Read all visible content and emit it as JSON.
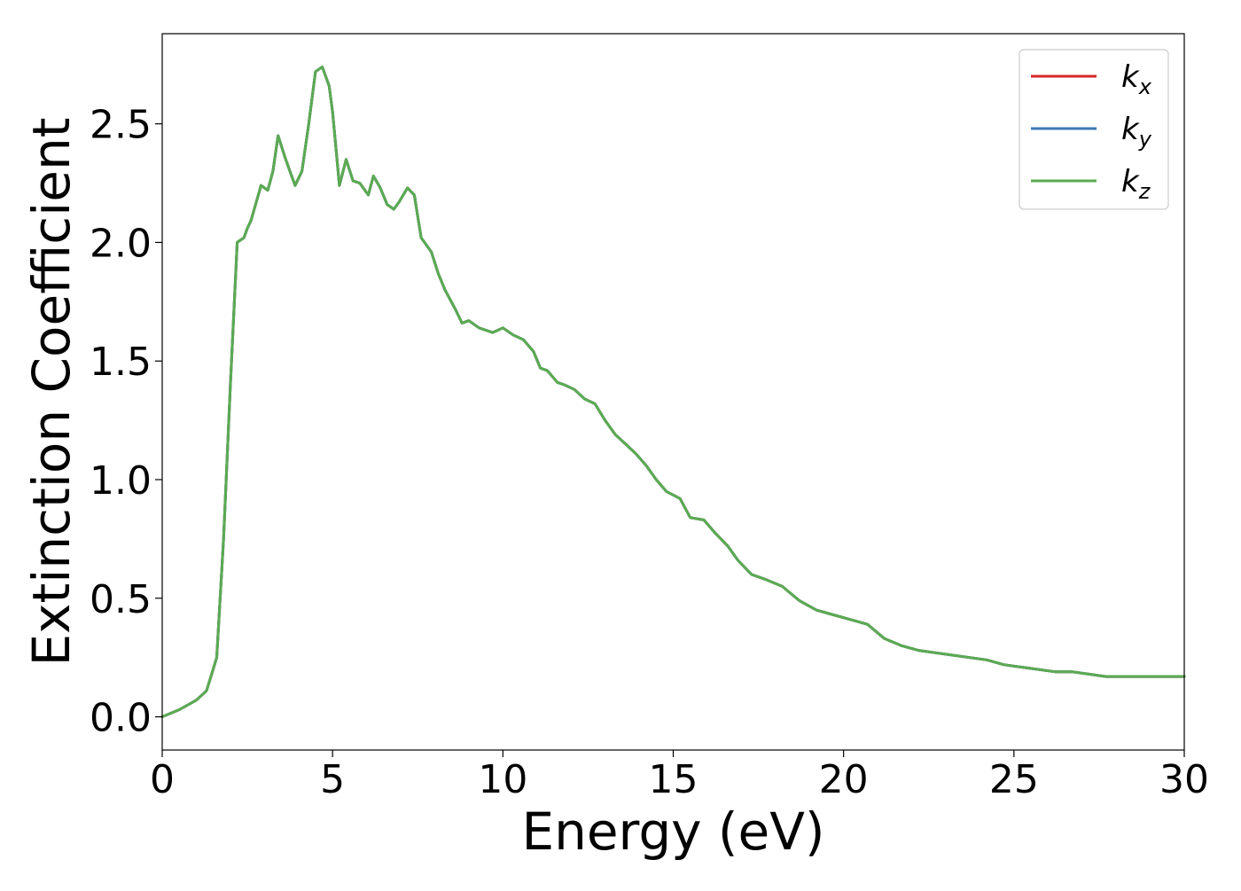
{
  "chart_data": {
    "type": "line",
    "xlabel": "Energy (eV)",
    "ylabel": "Extinction Coefficient",
    "xlim": [
      0,
      30
    ],
    "ylim": [
      -0.14,
      2.88
    ],
    "xticks": [
      0,
      5,
      10,
      15,
      20,
      25,
      30
    ],
    "xtick_labels": [
      "0",
      "5",
      "10",
      "15",
      "20",
      "25",
      "30"
    ],
    "yticks": [
      0.0,
      0.5,
      1.0,
      1.5,
      2.0,
      2.5
    ],
    "ytick_labels": [
      "0.0",
      "0.5",
      "1.0",
      "1.5",
      "2.0",
      "2.5"
    ],
    "grid": false,
    "legend_position": "top-right",
    "x": [
      0,
      0.5,
      1.0,
      1.3,
      1.6,
      1.8,
      2.0,
      2.2,
      2.4,
      2.5,
      2.6,
      2.7,
      2.9,
      3.1,
      3.25,
      3.4,
      3.6,
      3.75,
      3.9,
      4.1,
      4.3,
      4.5,
      4.7,
      4.9,
      5.0,
      5.2,
      5.4,
      5.6,
      5.8,
      6.05,
      6.2,
      6.4,
      6.6,
      6.8,
      6.95,
      7.2,
      7.4,
      7.6,
      7.9,
      8.1,
      8.3,
      8.6,
      8.8,
      9.0,
      9.3,
      9.7,
      10.0,
      10.3,
      10.6,
      10.9,
      11.1,
      11.3,
      11.6,
      11.8,
      12.1,
      12.4,
      12.7,
      13.0,
      13.3,
      13.6,
      13.9,
      14.2,
      14.5,
      14.8,
      15.2,
      15.5,
      15.9,
      16.2,
      16.6,
      16.9,
      17.3,
      17.7,
      18.2,
      18.7,
      19.2,
      19.7,
      20.2,
      20.7,
      21.2,
      21.7,
      22.2,
      22.7,
      23.2,
      23.7,
      24.2,
      24.7,
      25.2,
      25.7,
      26.2,
      26.7,
      27.2,
      27.7,
      28.2,
      28.7,
      29.2,
      29.6,
      30.0
    ],
    "series": [
      {
        "name": "k_x",
        "label_base": "k",
        "label_sub": "x",
        "color": "#d62728",
        "y": [
          0.0,
          0.03,
          0.07,
          0.11,
          0.25,
          0.75,
          1.4,
          2.0,
          2.02,
          2.06,
          2.09,
          2.14,
          2.24,
          2.22,
          2.3,
          2.45,
          2.36,
          2.3,
          2.24,
          2.3,
          2.5,
          2.72,
          2.74,
          2.66,
          2.55,
          2.24,
          2.35,
          2.26,
          2.25,
          2.2,
          2.28,
          2.23,
          2.16,
          2.14,
          2.17,
          2.23,
          2.2,
          2.02,
          1.96,
          1.87,
          1.8,
          1.72,
          1.66,
          1.67,
          1.64,
          1.62,
          1.64,
          1.61,
          1.59,
          1.54,
          1.47,
          1.46,
          1.41,
          1.4,
          1.38,
          1.34,
          1.32,
          1.25,
          1.19,
          1.15,
          1.11,
          1.06,
          1.0,
          0.95,
          0.92,
          0.84,
          0.83,
          0.78,
          0.72,
          0.66,
          0.6,
          0.58,
          0.55,
          0.49,
          0.45,
          0.43,
          0.41,
          0.39,
          0.33,
          0.3,
          0.28,
          0.27,
          0.26,
          0.25,
          0.24,
          0.22,
          0.21,
          0.2,
          0.19,
          0.19,
          0.18,
          0.17,
          0.17,
          0.17,
          0.17,
          0.17,
          0.17
        ]
      },
      {
        "name": "k_y",
        "label_base": "k",
        "label_sub": "y",
        "color": "#3d78b4",
        "y": [
          0.0,
          0.03,
          0.07,
          0.11,
          0.25,
          0.75,
          1.4,
          2.0,
          2.02,
          2.06,
          2.09,
          2.14,
          2.24,
          2.22,
          2.3,
          2.45,
          2.36,
          2.3,
          2.24,
          2.3,
          2.5,
          2.72,
          2.74,
          2.66,
          2.55,
          2.24,
          2.35,
          2.26,
          2.25,
          2.2,
          2.28,
          2.23,
          2.16,
          2.14,
          2.17,
          2.23,
          2.2,
          2.02,
          1.96,
          1.87,
          1.8,
          1.72,
          1.66,
          1.67,
          1.64,
          1.62,
          1.64,
          1.61,
          1.59,
          1.54,
          1.47,
          1.46,
          1.41,
          1.4,
          1.38,
          1.34,
          1.32,
          1.25,
          1.19,
          1.15,
          1.11,
          1.06,
          1.0,
          0.95,
          0.92,
          0.84,
          0.83,
          0.78,
          0.72,
          0.66,
          0.6,
          0.58,
          0.55,
          0.49,
          0.45,
          0.43,
          0.41,
          0.39,
          0.33,
          0.3,
          0.28,
          0.27,
          0.26,
          0.25,
          0.24,
          0.22,
          0.21,
          0.2,
          0.19,
          0.19,
          0.18,
          0.17,
          0.17,
          0.17,
          0.17,
          0.17,
          0.17
        ]
      },
      {
        "name": "k_z",
        "label_base": "k",
        "label_sub": "z",
        "color": "#5aab52",
        "y": [
          0.0,
          0.03,
          0.07,
          0.11,
          0.25,
          0.75,
          1.4,
          2.0,
          2.02,
          2.06,
          2.09,
          2.14,
          2.24,
          2.22,
          2.3,
          2.45,
          2.36,
          2.3,
          2.24,
          2.3,
          2.5,
          2.72,
          2.74,
          2.66,
          2.55,
          2.24,
          2.35,
          2.26,
          2.25,
          2.2,
          2.28,
          2.23,
          2.16,
          2.14,
          2.17,
          2.23,
          2.2,
          2.02,
          1.96,
          1.87,
          1.8,
          1.72,
          1.66,
          1.67,
          1.64,
          1.62,
          1.64,
          1.61,
          1.59,
          1.54,
          1.47,
          1.46,
          1.41,
          1.4,
          1.38,
          1.34,
          1.32,
          1.25,
          1.19,
          1.15,
          1.11,
          1.06,
          1.0,
          0.95,
          0.92,
          0.84,
          0.83,
          0.78,
          0.72,
          0.66,
          0.6,
          0.58,
          0.55,
          0.49,
          0.45,
          0.43,
          0.41,
          0.39,
          0.33,
          0.3,
          0.28,
          0.27,
          0.26,
          0.25,
          0.24,
          0.22,
          0.21,
          0.2,
          0.19,
          0.19,
          0.18,
          0.17,
          0.17,
          0.17,
          0.17,
          0.17,
          0.17
        ]
      }
    ]
  }
}
